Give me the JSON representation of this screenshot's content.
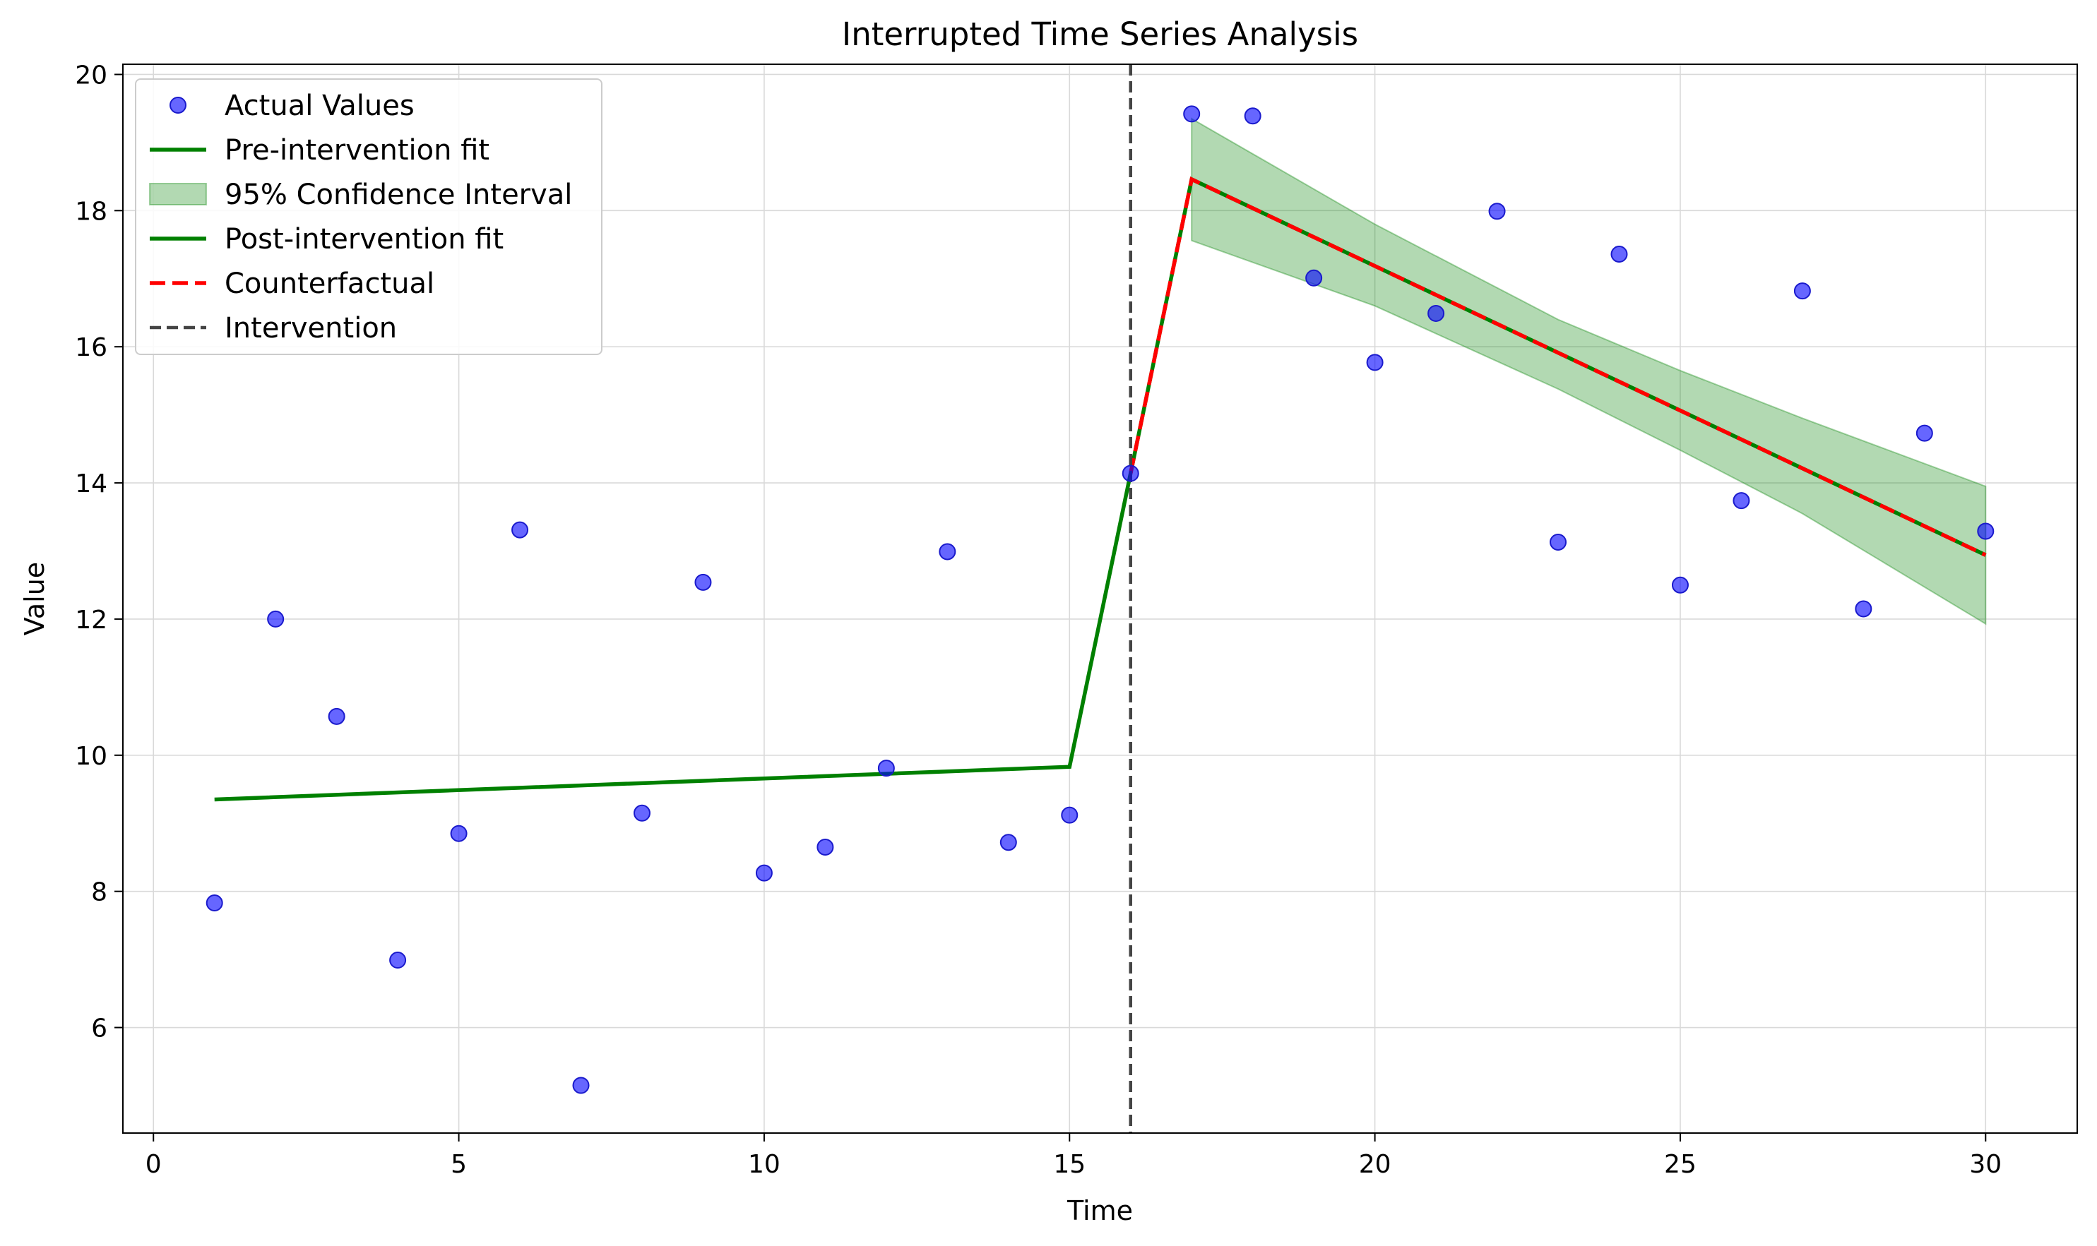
{
  "chart_data": {
    "type": "line",
    "title": "Interrupted Time Series Analysis",
    "xlabel": "Time",
    "ylabel": "Value",
    "xlim": [
      -0.5,
      31.5
    ],
    "ylim": [
      4.45,
      20.15
    ],
    "xticks": [
      0,
      5,
      10,
      15,
      20,
      25,
      30
    ],
    "yticks": [
      6,
      8,
      10,
      12,
      14,
      16,
      18,
      20
    ],
    "grid": true,
    "legend_position": "upper left",
    "intervention_time": 16,
    "series": [
      {
        "name": "Actual Values",
        "kind": "scatter",
        "color": "#0000ff",
        "x": [
          1,
          2,
          3,
          4,
          5,
          6,
          7,
          8,
          9,
          10,
          11,
          12,
          13,
          14,
          15,
          16,
          17,
          18,
          19,
          20,
          21,
          22,
          23,
          24,
          25,
          26,
          27,
          28,
          29,
          30
        ],
        "y": [
          7.83,
          12.0,
          10.57,
          6.99,
          8.85,
          13.31,
          5.15,
          9.15,
          12.54,
          8.27,
          8.65,
          9.81,
          12.99,
          8.72,
          9.12,
          14.14,
          19.42,
          19.39,
          17.01,
          15.77,
          16.49,
          17.99,
          13.13,
          17.36,
          12.5,
          13.74,
          16.82,
          12.15,
          14.73,
          13.29
        ]
      },
      {
        "name": "Pre-intervention fit",
        "kind": "line",
        "color": "#008000",
        "x": [
          1,
          15,
          16
        ],
        "y": [
          9.35,
          9.83,
          14.14
        ]
      },
      {
        "name": "95% Confidence Interval",
        "kind": "band",
        "color": "#008000",
        "x": [
          17,
          20,
          23,
          25,
          27,
          30
        ],
        "lower": [
          17.56,
          16.6,
          15.38,
          14.48,
          13.55,
          11.93
        ],
        "upper": [
          19.35,
          17.8,
          16.4,
          15.65,
          14.95,
          13.95
        ]
      },
      {
        "name": "Post-intervention fit",
        "kind": "line",
        "color": "#008000",
        "x": [
          16,
          17,
          30
        ],
        "y": [
          14.14,
          18.46,
          12.94
        ]
      },
      {
        "name": "Counterfactual",
        "kind": "dashed-line",
        "color": "#ff0000",
        "x": [
          16,
          17,
          30
        ],
        "y": [
          14.14,
          18.46,
          12.94
        ]
      },
      {
        "name": "Intervention",
        "kind": "vline",
        "color": "#444444",
        "x": [
          16
        ]
      }
    ]
  }
}
